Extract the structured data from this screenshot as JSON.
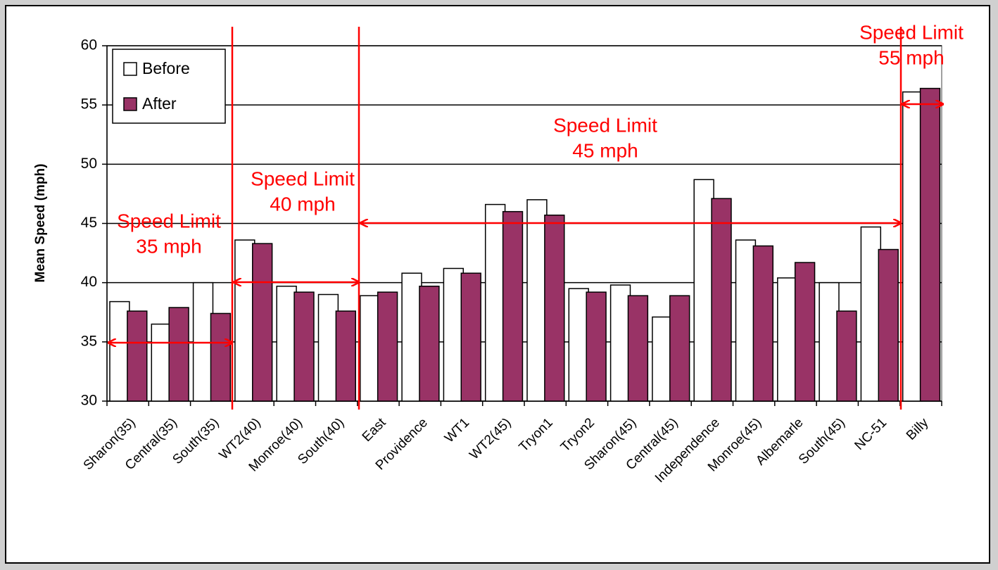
{
  "chart_data": {
    "type": "bar",
    "y_label": "Mean Speed (mph)",
    "categories": [
      "Sharon(35)",
      "Central(35)",
      "South(35)",
      "WT2(40)",
      "Monroe(40)",
      "South(40)",
      "East",
      "Providence",
      "WT1",
      "WT2(45)",
      "Tryon1",
      "Tryon2",
      "Sharon(45)",
      "Central(45)",
      "Independence",
      "Monroe(45)",
      "Albemarle",
      "South(45)",
      "NC-51",
      "Billy"
    ],
    "series": [
      {
        "name": "Before",
        "color": "#ffffff",
        "values": [
          38.4,
          36.5,
          40.0,
          43.6,
          39.7,
          39.0,
          38.9,
          40.8,
          41.2,
          46.6,
          47.0,
          39.5,
          39.8,
          37.1,
          48.7,
          43.6,
          40.4,
          40.0,
          44.7,
          56.1
        ]
      },
      {
        "name": "After",
        "color": "#993366",
        "values": [
          37.6,
          37.9,
          37.4,
          43.3,
          39.2,
          37.6,
          39.2,
          39.7,
          40.8,
          46.0,
          45.7,
          39.2,
          38.9,
          38.9,
          47.1,
          43.1,
          41.7,
          37.6,
          42.8,
          56.4
        ]
      }
    ],
    "ylim": [
      30,
      60
    ],
    "yticks": [
      30,
      35,
      40,
      45,
      50,
      55,
      60
    ],
    "grid": true,
    "legend": "upper left",
    "annotations": [
      {
        "lines": [
          "Speed Limit",
          "35 mph"
        ]
      },
      {
        "lines": [
          "Speed Limit",
          "40 mph"
        ]
      },
      {
        "lines": [
          "Speed Limit",
          "45 mph"
        ]
      },
      {
        "lines": [
          "Speed Limit",
          "55 mph"
        ]
      }
    ]
  }
}
